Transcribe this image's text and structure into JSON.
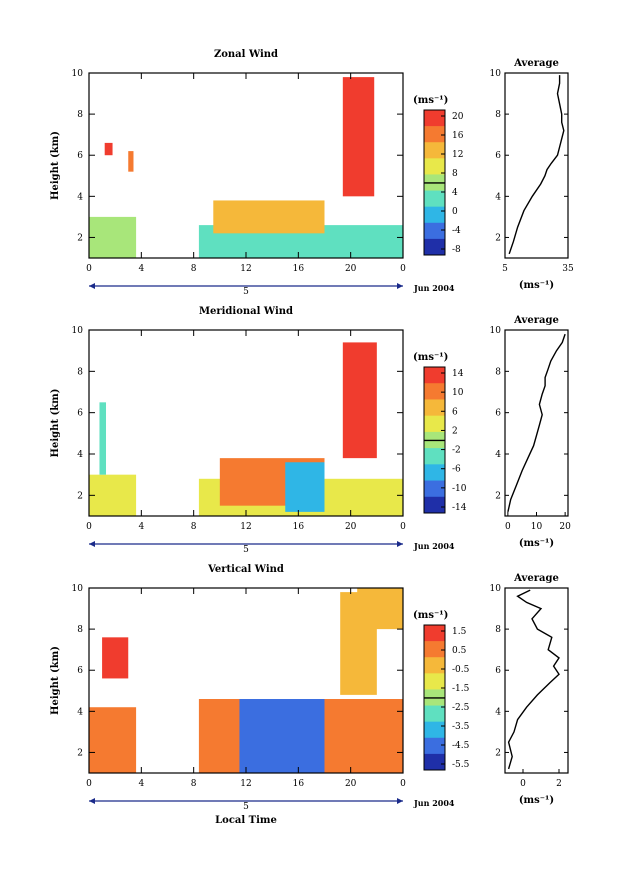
{
  "x_label": "Local Time",
  "date_label": "Jun 2004",
  "day_marker": "5",
  "average_title": "Average",
  "unit_label": "(ms⁻¹)",
  "panels": [
    {
      "id": "zonal",
      "title": "Zonal Wind",
      "ylabel": "Height (km)",
      "x_ticks": [
        "0",
        "4",
        "8",
        "12",
        "16",
        "20",
        "0"
      ],
      "y_ticks": [
        "2",
        "4",
        "6",
        "8",
        "10"
      ],
      "colorbar_ticks": [
        "20",
        "16",
        "12",
        "8",
        "4",
        "0",
        "-4",
        "-8"
      ],
      "avg_x_ticks": [
        "5",
        "35"
      ],
      "avg_y_ticks": [
        "2",
        "4",
        "6",
        "8",
        "10"
      ]
    },
    {
      "id": "meridional",
      "title": "Meridional Wind",
      "ylabel": "Height (km)",
      "x_ticks": [
        "0",
        "4",
        "8",
        "12",
        "16",
        "20",
        "0"
      ],
      "y_ticks": [
        "2",
        "4",
        "6",
        "8",
        "10"
      ],
      "colorbar_ticks": [
        "14",
        "10",
        "6",
        "2",
        "-2",
        "-6",
        "-10",
        "-14"
      ],
      "avg_x_ticks": [
        "0",
        "10",
        "20"
      ],
      "avg_y_ticks": [
        "2",
        "4",
        "6",
        "8",
        "10"
      ]
    },
    {
      "id": "vertical",
      "title": "Vertical Wind",
      "ylabel": "Height (km)",
      "x_ticks": [
        "0",
        "4",
        "8",
        "12",
        "16",
        "20",
        "0"
      ],
      "y_ticks": [
        "2",
        "4",
        "6",
        "8",
        "10"
      ],
      "colorbar_ticks": [
        "1.5",
        "0.5",
        "-0.5",
        "-1.5",
        "-2.5",
        "-3.5",
        "-4.5",
        "-5.5"
      ],
      "avg_x_ticks": [
        "0",
        "2"
      ],
      "avg_y_ticks": [
        "2",
        "4",
        "6",
        "8",
        "10"
      ]
    }
  ],
  "chart_data": [
    {
      "type": "heatmap",
      "title": "Zonal Wind",
      "xlabel": "",
      "ylabel": "Height (km)",
      "xlim": [
        0,
        24
      ],
      "ylim": [
        1,
        10
      ],
      "colorbar": {
        "unit": "(ms⁻¹)",
        "range": [
          -8,
          20
        ]
      },
      "colors": [
        "#1f2fa8",
        "#3b6ee0",
        "#2fb6e6",
        "#5fe0c0",
        "#a8e67a",
        "#e8e84a",
        "#f5b83a",
        "#f57a30",
        "#f03c2e"
      ],
      "regions": [
        {
          "x": [
            0,
            3.6
          ],
          "y": [
            1.0,
            3.0
          ],
          "value": 6
        },
        {
          "x": [
            3.0,
            3.4
          ],
          "y": [
            5.2,
            6.2
          ],
          "value": 16
        },
        {
          "x": [
            1.2,
            1.8
          ],
          "y": [
            6.0,
            6.6
          ],
          "value": 20
        },
        {
          "x": [
            8.4,
            24
          ],
          "y": [
            1.0,
            2.6
          ],
          "value": 4
        },
        {
          "x": [
            9.5,
            18
          ],
          "y": [
            2.2,
            3.8
          ],
          "value": 12
        },
        {
          "x": [
            19.4,
            21.8
          ],
          "y": [
            4.0,
            9.8
          ],
          "value": 20
        }
      ]
    },
    {
      "type": "line",
      "title": "Average",
      "xlabel": "(ms⁻¹)",
      "ylabel": "",
      "xlim": [
        5,
        35
      ],
      "ylim": [
        1,
        10
      ],
      "series": [
        {
          "x": [
            7,
            9,
            11,
            14,
            18,
            22,
            24,
            25,
            27,
            30,
            31,
            32,
            33,
            32,
            32,
            31,
            30,
            31,
            31
          ],
          "y": [
            1.2,
            1.8,
            2.5,
            3.3,
            4.0,
            4.6,
            5.0,
            5.3,
            5.6,
            6.0,
            6.4,
            6.8,
            7.2,
            7.6,
            8.0,
            8.5,
            9.0,
            9.5,
            9.9
          ]
        }
      ]
    },
    {
      "type": "heatmap",
      "title": "Meridional Wind",
      "xlabel": "",
      "ylabel": "Height (km)",
      "xlim": [
        0,
        24
      ],
      "ylim": [
        1,
        10
      ],
      "colorbar": {
        "unit": "(ms⁻¹)",
        "range": [
          -14,
          14
        ]
      },
      "colors": [
        "#1f2fa8",
        "#3b6ee0",
        "#2fb6e6",
        "#5fe0c0",
        "#a8e67a",
        "#e8e84a",
        "#f5b83a",
        "#f57a30",
        "#f03c2e"
      ],
      "regions": [
        {
          "x": [
            0,
            3.6
          ],
          "y": [
            1.0,
            3.0
          ],
          "value": 2
        },
        {
          "x": [
            0.8,
            1.3
          ],
          "y": [
            3.0,
            6.5
          ],
          "value": -2
        },
        {
          "x": [
            8.4,
            24
          ],
          "y": [
            1.0,
            2.8
          ],
          "value": 4
        },
        {
          "x": [
            10,
            18
          ],
          "y": [
            1.5,
            3.8
          ],
          "value": 8
        },
        {
          "x": [
            15,
            18
          ],
          "y": [
            1.2,
            3.6
          ],
          "value": -6
        },
        {
          "x": [
            19.4,
            22
          ],
          "y": [
            3.8,
            9.4
          ],
          "value": 14
        }
      ]
    },
    {
      "type": "line",
      "title": "Average",
      "xlabel": "(ms⁻¹)",
      "ylabel": "",
      "xlim": [
        -1,
        21
      ],
      "ylim": [
        1,
        10
      ],
      "series": [
        {
          "x": [
            0,
            1,
            3,
            5,
            7,
            9,
            10,
            11,
            12,
            11,
            12,
            13,
            13,
            14,
            15,
            17,
            19,
            20
          ],
          "y": [
            1.2,
            1.8,
            2.5,
            3.2,
            3.8,
            4.4,
            4.9,
            5.4,
            5.9,
            6.4,
            6.9,
            7.3,
            7.7,
            8.1,
            8.5,
            9.0,
            9.4,
            9.8
          ]
        }
      ]
    },
    {
      "type": "heatmap",
      "title": "Vertical Wind",
      "xlabel": "Local Time",
      "ylabel": "Height (km)",
      "xlim": [
        0,
        24
      ],
      "ylim": [
        1,
        10
      ],
      "colorbar": {
        "unit": "(ms⁻¹)",
        "range": [
          -6,
          2
        ]
      },
      "colors": [
        "#1f2fa8",
        "#3b6ee0",
        "#2fb6e6",
        "#5fe0c0",
        "#a8e67a",
        "#e8e84a",
        "#f5b83a",
        "#f57a30",
        "#f03c2e"
      ],
      "regions": [
        {
          "x": [
            0,
            3.6
          ],
          "y": [
            1.0,
            4.2
          ],
          "value": 0.5
        },
        {
          "x": [
            1.0,
            3.0
          ],
          "y": [
            5.6,
            7.6
          ],
          "value": 1.5
        },
        {
          "x": [
            8.4,
            24
          ],
          "y": [
            1.0,
            4.6
          ],
          "value": 0.5
        },
        {
          "x": [
            11.5,
            18
          ],
          "y": [
            1.0,
            4.6
          ],
          "value": -4.5
        },
        {
          "x": [
            19.2,
            22
          ],
          "y": [
            4.8,
            9.8
          ],
          "value": -0.5
        },
        {
          "x": [
            20.5,
            24
          ],
          "y": [
            8.0,
            10
          ],
          "value": -0.5
        }
      ]
    },
    {
      "type": "line",
      "title": "Average",
      "xlabel": "(ms⁻¹)",
      "ylabel": "",
      "xlim": [
        -1,
        2.5
      ],
      "ylim": [
        1,
        10
      ],
      "series": [
        {
          "x": [
            -0.8,
            -0.6,
            -0.8,
            -0.5,
            -0.3,
            0.2,
            0.8,
            1.5,
            2.0,
            1.7,
            2.0,
            1.4,
            1.6,
            0.8,
            0.5,
            1.0,
            0.2,
            -0.3,
            0.4
          ],
          "y": [
            1.2,
            1.8,
            2.5,
            3.0,
            3.6,
            4.2,
            4.8,
            5.4,
            5.8,
            6.2,
            6.6,
            7.0,
            7.6,
            8.0,
            8.5,
            9.0,
            9.3,
            9.6,
            9.9
          ]
        }
      ]
    }
  ]
}
